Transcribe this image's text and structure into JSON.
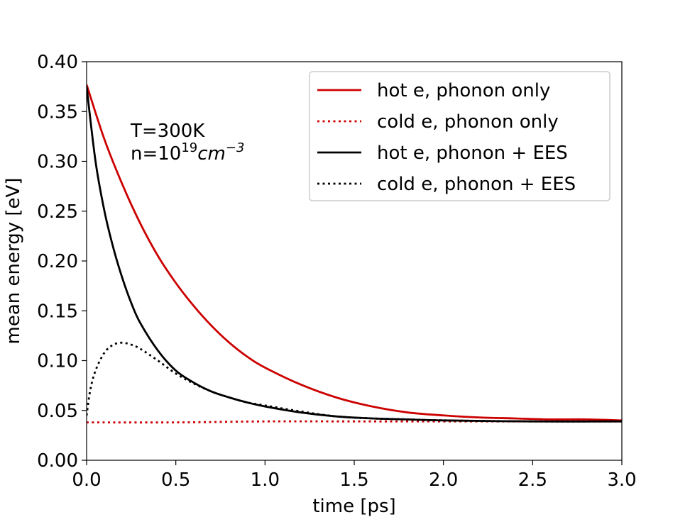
{
  "chart_data": {
    "type": "line",
    "xlabel": "time [ps]",
    "ylabel": "mean energy [eV]",
    "xlim": [
      0.0,
      3.0
    ],
    "ylim": [
      0.0,
      0.4
    ],
    "grid": false,
    "legend_position": "top-right",
    "x_ticks": [
      "0.0",
      "0.5",
      "1.0",
      "1.5",
      "2.0",
      "2.5",
      "3.0"
    ],
    "y_ticks": [
      "0.00",
      "0.05",
      "0.10",
      "0.15",
      "0.20",
      "0.25",
      "0.30",
      "0.35",
      "0.40"
    ],
    "annotation": {
      "line1": "T=300K",
      "line2_prefix": "n=10",
      "line2_sup": "19",
      "line2_unit": "cm",
      "line2_unit_sup": "−3"
    },
    "series": [
      {
        "name": "hot e, phonon only",
        "color": "#cc0000",
        "style": "solid",
        "x": [
          0.0,
          0.1,
          0.2,
          0.3,
          0.4,
          0.5,
          0.6,
          0.7,
          0.8,
          0.9,
          1.0,
          1.2,
          1.4,
          1.6,
          1.8,
          2.0,
          2.2,
          2.4,
          2.6,
          2.8,
          3.0
        ],
        "y": [
          0.377,
          0.322,
          0.277,
          0.238,
          0.205,
          0.178,
          0.155,
          0.135,
          0.118,
          0.104,
          0.093,
          0.076,
          0.063,
          0.054,
          0.048,
          0.045,
          0.043,
          0.042,
          0.041,
          0.041,
          0.04
        ]
      },
      {
        "name": "cold e, phonon only",
        "color": "#cc0000",
        "style": "dotted",
        "x": [
          0.0,
          0.5,
          1.0,
          1.5,
          2.0,
          2.5,
          3.0
        ],
        "y": [
          0.038,
          0.038,
          0.039,
          0.039,
          0.039,
          0.039,
          0.039
        ]
      },
      {
        "name": "hot e, phonon + EES",
        "color": "#000000",
        "style": "solid",
        "x": [
          0.0,
          0.05,
          0.1,
          0.15,
          0.2,
          0.25,
          0.3,
          0.4,
          0.5,
          0.6,
          0.7,
          0.8,
          0.9,
          1.0,
          1.2,
          1.4,
          1.6,
          1.8,
          2.0,
          2.5,
          3.0
        ],
        "y": [
          0.375,
          0.3,
          0.25,
          0.213,
          0.183,
          0.158,
          0.138,
          0.11,
          0.09,
          0.078,
          0.069,
          0.063,
          0.058,
          0.054,
          0.048,
          0.044,
          0.042,
          0.041,
          0.04,
          0.039,
          0.039
        ]
      },
      {
        "name": "cold e, phonon + EES",
        "color": "#000000",
        "style": "dotted",
        "x": [
          0.0,
          0.02,
          0.05,
          0.1,
          0.15,
          0.2,
          0.25,
          0.3,
          0.4,
          0.5,
          0.6,
          0.7,
          0.8,
          0.9,
          1.0,
          1.2,
          1.4,
          1.6,
          1.8,
          2.0,
          2.5,
          3.0
        ],
        "y": [
          0.045,
          0.07,
          0.09,
          0.108,
          0.116,
          0.118,
          0.116,
          0.112,
          0.1,
          0.087,
          0.077,
          0.069,
          0.063,
          0.058,
          0.055,
          0.049,
          0.044,
          0.042,
          0.041,
          0.04,
          0.039,
          0.039
        ]
      }
    ]
  }
}
